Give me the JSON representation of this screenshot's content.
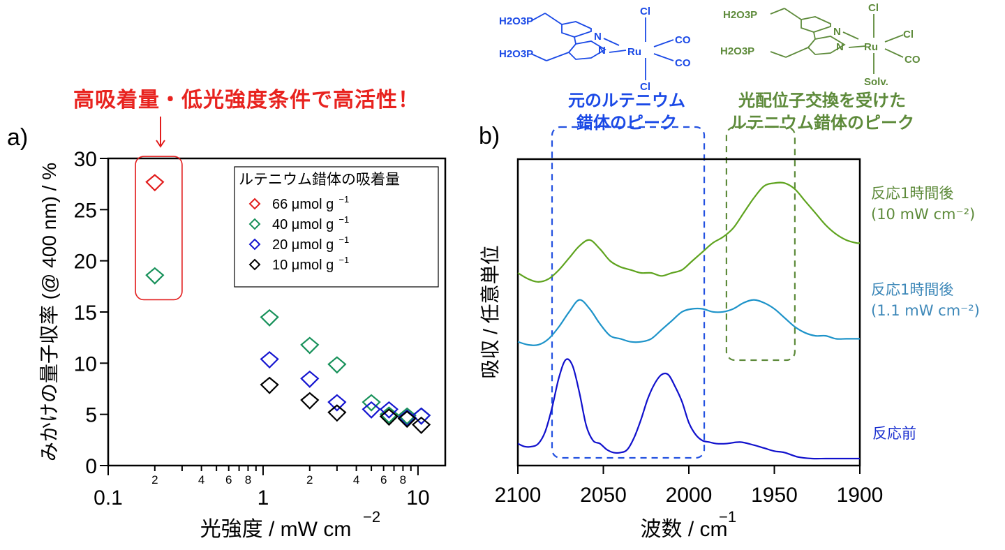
{
  "headline": "高吸着量・低光強度条件で高活性！",
  "colors": {
    "red": "#e21d1d",
    "green": "#17915a",
    "blue": "#1515d0",
    "black": "#000000",
    "spec_green": "#5ea31e",
    "spec_cyan": "#1d93c9",
    "spec_blue": "#1010cc",
    "box_blue": "#2351e0",
    "box_green": "#5d8a3a"
  },
  "molecules": {
    "original": {
      "atoms": [
        "H2O3P",
        "H2O3P",
        "N",
        "N",
        "Ru",
        "Cl",
        "Cl",
        "CO",
        "CO"
      ],
      "caption_lines": [
        "元のルテニウム",
        "錯体のピーク"
      ]
    },
    "exchanged": {
      "atoms": [
        "H2O3P",
        "H2O3P",
        "N",
        "N",
        "Ru",
        "Cl",
        "Cl",
        "CO",
        "Solv."
      ],
      "caption_lines": [
        "光配位子交換を受けた",
        "ルテニウム錯体のピーク"
      ]
    }
  },
  "chart_data": [
    {
      "panel": "a)",
      "type": "scatter",
      "xscale": "log",
      "xlabel": "光強度 / mW cm",
      "xlabel_sup": "−2",
      "ylabel": "みかけの量子収率 (@ 400 nm) / %",
      "xlim": [
        0.1,
        15
      ],
      "ylim": [
        0,
        30
      ],
      "x_major_ticks": [
        {
          "v": 0.1,
          "label": "0.1"
        },
        {
          "v": 1,
          "label": "1"
        },
        {
          "v": 10,
          "label": "10"
        }
      ],
      "x_minor_ticks": [
        0.2,
        0.3,
        0.4,
        0.5,
        0.6,
        0.7,
        0.8,
        0.9,
        2,
        3,
        4,
        5,
        6,
        7,
        8,
        9
      ],
      "x_minor_labels": [
        {
          "v": 0.2,
          "label": "2"
        },
        {
          "v": 0.4,
          "label": "4"
        },
        {
          "v": 0.6,
          "label": "6"
        },
        {
          "v": 0.8,
          "label": "8"
        },
        {
          "v": 2,
          "label": "2"
        },
        {
          "v": 4,
          "label": "4"
        },
        {
          "v": 6,
          "label": "6"
        },
        {
          "v": 8,
          "label": "8"
        }
      ],
      "y_ticks": [
        0,
        5,
        10,
        15,
        20,
        25,
        30
      ],
      "marker": "open-diamond",
      "legend": {
        "title": "ルテニウム錯体の吸着量",
        "position": "top-right"
      },
      "series": [
        {
          "name": "66 μmol g",
          "sup": "−1",
          "color": "#e21d1d",
          "points": [
            [
              0.2,
              27.7
            ]
          ]
        },
        {
          "name": "40 μmol g",
          "sup": "−1",
          "color": "#17915a",
          "points": [
            [
              0.2,
              18.6
            ],
            [
              1.1,
              14.5
            ],
            [
              2.0,
              11.8
            ],
            [
              3.0,
              9.9
            ],
            [
              5.0,
              6.2
            ],
            [
              6.5,
              5.0
            ],
            [
              8.5,
              4.9
            ],
            [
              10.5,
              4.9
            ]
          ]
        },
        {
          "name": "20 μmol g",
          "sup": "−1",
          "color": "#1515d0",
          "points": [
            [
              1.1,
              10.4
            ],
            [
              2.0,
              8.5
            ],
            [
              3.0,
              6.2
            ],
            [
              5.0,
              5.5
            ],
            [
              6.5,
              5.5
            ],
            [
              8.5,
              4.7
            ],
            [
              10.5,
              4.9
            ]
          ]
        },
        {
          "name": "10 μmol g",
          "sup": "−1",
          "color": "#000000",
          "points": [
            [
              1.1,
              7.9
            ],
            [
              2.0,
              6.4
            ],
            [
              3.0,
              5.2
            ],
            [
              6.5,
              4.8
            ],
            [
              8.5,
              4.6
            ],
            [
              10.5,
              4.0
            ]
          ]
        }
      ],
      "annotation": {
        "type": "rounded-box",
        "x_range": [
          0.15,
          0.3
        ],
        "y_range": [
          16.2,
          30.2
        ],
        "color": "#e21d1d"
      }
    },
    {
      "panel": "b)",
      "type": "line",
      "xlabel": "波数 / cm",
      "xlabel_sup": "−1",
      "ylabel": "吸収 / 任意単位",
      "xlim": [
        2100,
        1900
      ],
      "x_reversed": true,
      "x_ticks": [
        2100,
        2050,
        2000,
        1950,
        1900
      ],
      "y_ticks": [],
      "series": [
        {
          "name": "反応1時間後 (10 mW cm⁻²)",
          "label_lines": [
            "反応1時間後",
            "(10 mW cm⁻²)"
          ],
          "color": "#5ea31e",
          "x": [
            2100,
            2094,
            2088,
            2082,
            2076,
            2070,
            2064,
            2058,
            2052,
            2046,
            2040,
            2034,
            2028,
            2022,
            2016,
            2010,
            2004,
            1998,
            1992,
            1986,
            1980,
            1974,
            1968,
            1962,
            1956,
            1950,
            1944,
            1938,
            1932,
            1926,
            1920,
            1914,
            1908,
            1902,
            1900
          ],
          "y": [
            0.62,
            0.6,
            0.59,
            0.6,
            0.63,
            0.67,
            0.71,
            0.73,
            0.7,
            0.66,
            0.64,
            0.63,
            0.62,
            0.62,
            0.61,
            0.62,
            0.63,
            0.66,
            0.69,
            0.72,
            0.74,
            0.77,
            0.82,
            0.87,
            0.91,
            0.92,
            0.92,
            0.9,
            0.86,
            0.82,
            0.78,
            0.75,
            0.73,
            0.72,
            0.72
          ]
        },
        {
          "name": "反応1時間後 (1.1 mW cm⁻²)",
          "label_lines": [
            "反応1時間後",
            "(1.1 mW cm⁻²)"
          ],
          "color": "#1d93c9",
          "x": [
            2100,
            2094,
            2088,
            2082,
            2076,
            2070,
            2064,
            2058,
            2052,
            2046,
            2040,
            2034,
            2028,
            2022,
            2016,
            2010,
            2004,
            1998,
            1992,
            1986,
            1980,
            1974,
            1968,
            1962,
            1956,
            1950,
            1944,
            1938,
            1932,
            1926,
            1920,
            1914,
            1908,
            1902,
            1900
          ],
          "y": [
            0.39,
            0.38,
            0.38,
            0.4,
            0.44,
            0.49,
            0.53,
            0.5,
            0.45,
            0.41,
            0.4,
            0.39,
            0.39,
            0.4,
            0.43,
            0.46,
            0.49,
            0.5,
            0.5,
            0.49,
            0.49,
            0.5,
            0.52,
            0.53,
            0.52,
            0.5,
            0.47,
            0.44,
            0.42,
            0.41,
            0.41,
            0.4,
            0.4,
            0.4,
            0.4
          ]
        },
        {
          "name": "反応前",
          "label_lines": [
            "反応前"
          ],
          "color": "#1010cc",
          "x": [
            2100,
            2096,
            2092,
            2088,
            2084,
            2080,
            2076,
            2072,
            2068,
            2064,
            2060,
            2056,
            2052,
            2048,
            2044,
            2040,
            2036,
            2032,
            2028,
            2024,
            2020,
            2016,
            2012,
            2008,
            2004,
            2000,
            1996,
            1992,
            1988,
            1984,
            1978,
            1970,
            1962,
            1956,
            1950,
            1944,
            1936,
            1928,
            1920,
            1912,
            1906,
            1900
          ],
          "y": [
            0.05,
            0.04,
            0.04,
            0.05,
            0.09,
            0.17,
            0.27,
            0.33,
            0.31,
            0.22,
            0.11,
            0.06,
            0.05,
            0.03,
            0.02,
            0.02,
            0.03,
            0.07,
            0.13,
            0.2,
            0.25,
            0.28,
            0.28,
            0.24,
            0.19,
            0.12,
            0.08,
            0.06,
            0.055,
            0.05,
            0.05,
            0.055,
            0.045,
            0.035,
            0.025,
            0.02,
            0.005,
            0.0,
            0.0,
            0.0,
            0.0,
            0.0
          ]
        }
      ],
      "annotations": [
        {
          "type": "dashed-rounded-box",
          "label": "元のルテニウム錯体のピーク",
          "x_range": [
            2080,
            1991
          ],
          "color": "#2351e0"
        },
        {
          "type": "dashed-rounded-box",
          "label": "光配位子交換を受けたルテニウム錯体のピーク",
          "x_range": [
            1978,
            1938
          ],
          "color": "#5d8a3a"
        }
      ]
    }
  ]
}
